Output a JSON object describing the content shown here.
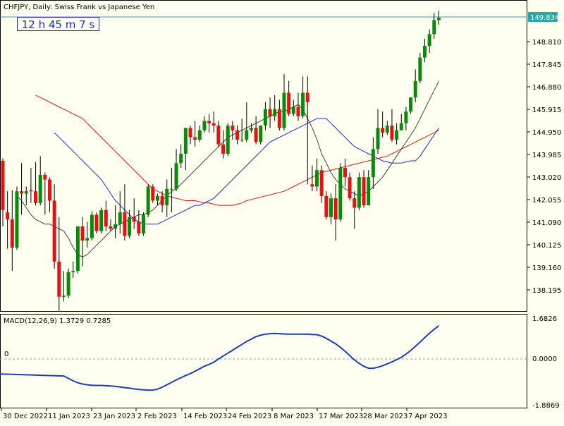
{
  "chart_title": "CHFJPY, Daily:  Swiss Frank vs Japanese Yen",
  "timer": "12 h 45 m 7 s",
  "current_price": "149.834",
  "price_axis_labels": [
    "148.810",
    "147.845",
    "146.880",
    "145.915",
    "144.950",
    "143.985",
    "143.020",
    "142.055",
    "141.090",
    "140.125",
    "139.160",
    "138.195"
  ],
  "macd_label": "MACD(12,26,9) 1.3729 0.7285",
  "macd_axis_labels": [
    "1.6826",
    "0.0000",
    "-1.8869"
  ],
  "macd_zero_label": "0",
  "date_labels": [
    "30 Dec 2022",
    "11 Jan 2023",
    "23 Jan 2023",
    "2 Feb 2023",
    "14 Feb 2023",
    "24 Feb 2023",
    "8 Mar 2023",
    "17 Mar 2023",
    "28 Mar 2023",
    "7 Apr 2023"
  ],
  "colors": {
    "background": "#fffff0",
    "bull": "#0a8a0a",
    "bear": "#e01414",
    "ma_fast": "#404040",
    "ma_mid": "#1e2bd2",
    "ma_slow": "#e01414",
    "macd": "#1e3cb4",
    "price_line": "#2aa7a7"
  },
  "chart_data": {
    "type": "candlestick",
    "symbol": "CHFJPY",
    "timeframe": "Daily",
    "ylim": [
      137.6,
      150.2
    ],
    "candles": [
      {
        "o": 143.7,
        "h": 143.8,
        "c": 141.6,
        "l": 140.9
      },
      {
        "o": 141.5,
        "h": 142.4,
        "c": 141.2,
        "l": 139.95
      },
      {
        "o": 141.2,
        "h": 142.45,
        "c": 140.0,
        "l": 139.0
      },
      {
        "o": 140.0,
        "h": 142.6,
        "c": 142.4,
        "l": 139.9
      },
      {
        "o": 142.4,
        "h": 143.6,
        "c": 142.3,
        "l": 141.4
      },
      {
        "o": 142.3,
        "h": 142.6,
        "c": 142.4,
        "l": 141.8
      },
      {
        "o": 142.45,
        "h": 143.4,
        "c": 142.4,
        "l": 141.9
      },
      {
        "o": 142.4,
        "h": 143.65,
        "c": 141.9,
        "l": 141.8
      },
      {
        "o": 141.9,
        "h": 143.9,
        "c": 143.1,
        "l": 141.8
      },
      {
        "o": 143.1,
        "h": 143.2,
        "c": 142.9,
        "l": 141.4
      },
      {
        "o": 142.9,
        "h": 143.0,
        "c": 142.0,
        "l": 141.5
      },
      {
        "o": 142.0,
        "h": 142.7,
        "c": 139.4,
        "l": 139.1
      },
      {
        "o": 139.4,
        "h": 141.3,
        "c": 137.9,
        "l": 137.3
      },
      {
        "o": 137.9,
        "h": 139.0,
        "c": 137.95,
        "l": 137.7
      },
      {
        "o": 137.95,
        "h": 139.1,
        "c": 138.95,
        "l": 137.85
      },
      {
        "o": 138.95,
        "h": 139.4,
        "c": 139.0,
        "l": 138.7
      },
      {
        "o": 139.0,
        "h": 140.8,
        "c": 140.9,
        "l": 138.9
      },
      {
        "o": 140.9,
        "h": 141.3,
        "c": 140.3,
        "l": 139.2
      },
      {
        "o": 140.3,
        "h": 141.1,
        "c": 140.4,
        "l": 140.0
      },
      {
        "o": 140.4,
        "h": 141.55,
        "c": 141.4,
        "l": 140.3
      },
      {
        "o": 141.4,
        "h": 141.5,
        "c": 140.7,
        "l": 140.6
      },
      {
        "o": 140.7,
        "h": 141.7,
        "c": 141.6,
        "l": 140.6
      },
      {
        "o": 141.6,
        "h": 142.0,
        "c": 140.9,
        "l": 140.7
      },
      {
        "o": 140.9,
        "h": 141.2,
        "c": 140.8,
        "l": 140.7
      },
      {
        "o": 140.8,
        "h": 141.8,
        "c": 141.0,
        "l": 140.4
      },
      {
        "o": 141.0,
        "h": 142.4,
        "c": 141.5,
        "l": 140.6
      },
      {
        "o": 141.5,
        "h": 142.7,
        "c": 140.5,
        "l": 140.3
      },
      {
        "o": 140.5,
        "h": 141.6,
        "c": 141.3,
        "l": 140.4
      },
      {
        "o": 141.3,
        "h": 142.1,
        "c": 141.1,
        "l": 140.8
      },
      {
        "o": 141.1,
        "h": 141.6,
        "c": 140.6,
        "l": 140.5
      },
      {
        "o": 140.6,
        "h": 141.5,
        "c": 141.4,
        "l": 140.5
      },
      {
        "o": 141.4,
        "h": 142.7,
        "c": 142.6,
        "l": 141.3
      },
      {
        "o": 142.6,
        "h": 142.7,
        "c": 142.0,
        "l": 141.9
      },
      {
        "o": 142.0,
        "h": 142.3,
        "c": 142.2,
        "l": 141.8
      },
      {
        "o": 142.2,
        "h": 142.4,
        "c": 141.8,
        "l": 141.5
      },
      {
        "o": 141.8,
        "h": 142.9,
        "c": 142.5,
        "l": 141.3
      },
      {
        "o": 142.5,
        "h": 143.4,
        "c": 142.5,
        "l": 141.5
      },
      {
        "o": 142.5,
        "h": 144.2,
        "c": 143.6,
        "l": 142.4
      },
      {
        "o": 143.6,
        "h": 144.4,
        "c": 144.0,
        "l": 143.4
      },
      {
        "o": 144.0,
        "h": 145.0,
        "c": 145.1,
        "l": 143.3
      },
      {
        "o": 145.1,
        "h": 145.2,
        "c": 144.7,
        "l": 144.4
      },
      {
        "o": 144.7,
        "h": 145.4,
        "c": 144.6,
        "l": 144.3
      },
      {
        "o": 144.6,
        "h": 145.2,
        "c": 145.0,
        "l": 144.5
      },
      {
        "o": 145.0,
        "h": 145.6,
        "c": 145.4,
        "l": 144.9
      },
      {
        "o": 145.4,
        "h": 145.7,
        "c": 145.3,
        "l": 144.9
      },
      {
        "o": 145.3,
        "h": 145.8,
        "c": 145.2,
        "l": 144.9
      },
      {
        "o": 145.2,
        "h": 145.4,
        "c": 144.4,
        "l": 144.3
      },
      {
        "o": 144.4,
        "h": 145.0,
        "c": 144.0,
        "l": 143.8
      },
      {
        "o": 144.0,
        "h": 145.3,
        "c": 145.2,
        "l": 143.9
      },
      {
        "o": 145.2,
        "h": 145.4,
        "c": 145.0,
        "l": 144.6
      },
      {
        "o": 145.0,
        "h": 145.2,
        "c": 144.6,
        "l": 144.4
      },
      {
        "o": 144.6,
        "h": 145.5,
        "c": 144.6,
        "l": 144.5
      },
      {
        "o": 144.6,
        "h": 146.2,
        "c": 145.0,
        "l": 144.5
      },
      {
        "o": 145.0,
        "h": 145.3,
        "c": 145.1,
        "l": 144.9
      },
      {
        "o": 145.1,
        "h": 145.6,
        "c": 144.5,
        "l": 144.4
      },
      {
        "o": 144.5,
        "h": 145.2,
        "c": 145.2,
        "l": 144.4
      },
      {
        "o": 145.2,
        "h": 146.2,
        "c": 145.9,
        "l": 145.0
      },
      {
        "o": 145.9,
        "h": 146.4,
        "c": 145.6,
        "l": 145.1
      },
      {
        "o": 145.6,
        "h": 146.5,
        "c": 145.9,
        "l": 145.4
      },
      {
        "o": 145.9,
        "h": 146.3,
        "c": 145.1,
        "l": 145.0
      },
      {
        "o": 145.1,
        "h": 147.4,
        "c": 146.6,
        "l": 145.0
      },
      {
        "o": 146.6,
        "h": 147.1,
        "c": 145.7,
        "l": 145.6
      },
      {
        "o": 145.7,
        "h": 146.3,
        "c": 146.0,
        "l": 145.6
      },
      {
        "o": 146.0,
        "h": 146.6,
        "c": 145.6,
        "l": 145.4
      },
      {
        "o": 145.6,
        "h": 147.3,
        "c": 146.6,
        "l": 145.5
      },
      {
        "o": 146.6,
        "h": 147.3,
        "c": 146.2,
        "l": 142.7
      },
      {
        "o": 142.7,
        "h": 143.5,
        "c": 142.6,
        "l": 142.4
      },
      {
        "o": 142.6,
        "h": 143.8,
        "c": 143.3,
        "l": 142.4
      },
      {
        "o": 143.3,
        "h": 143.5,
        "c": 142.2,
        "l": 141.9
      },
      {
        "o": 142.2,
        "h": 142.4,
        "c": 141.3,
        "l": 141.2
      },
      {
        "o": 141.3,
        "h": 142.3,
        "c": 142.1,
        "l": 141.0
      },
      {
        "o": 142.1,
        "h": 142.7,
        "c": 141.2,
        "l": 140.3
      },
      {
        "o": 141.2,
        "h": 143.6,
        "c": 143.4,
        "l": 141.1
      },
      {
        "o": 143.4,
        "h": 143.8,
        "c": 143.0,
        "l": 142.6
      },
      {
        "o": 143.0,
        "h": 143.2,
        "c": 142.1,
        "l": 142.0
      },
      {
        "o": 142.1,
        "h": 142.4,
        "c": 141.7,
        "l": 140.8
      },
      {
        "o": 141.7,
        "h": 143.2,
        "c": 143.0,
        "l": 141.6
      },
      {
        "o": 143.0,
        "h": 143.3,
        "c": 141.8,
        "l": 141.7
      },
      {
        "o": 141.8,
        "h": 143.3,
        "c": 143.0,
        "l": 141.8
      },
      {
        "o": 143.0,
        "h": 144.7,
        "c": 144.2,
        "l": 142.5
      },
      {
        "o": 144.2,
        "h": 145.9,
        "c": 145.1,
        "l": 144.0
      },
      {
        "o": 145.1,
        "h": 145.8,
        "c": 144.9,
        "l": 144.7
      },
      {
        "o": 144.9,
        "h": 145.4,
        "c": 145.2,
        "l": 144.8
      },
      {
        "o": 145.2,
        "h": 145.9,
        "c": 144.6,
        "l": 144.5
      },
      {
        "o": 144.6,
        "h": 145.3,
        "c": 145.0,
        "l": 144.4
      },
      {
        "o": 145.0,
        "h": 145.7,
        "c": 145.3,
        "l": 145.1
      },
      {
        "o": 145.3,
        "h": 146.0,
        "c": 145.8,
        "l": 145.0
      },
      {
        "o": 145.8,
        "h": 146.4,
        "c": 146.4,
        "l": 145.7
      },
      {
        "o": 146.4,
        "h": 147.6,
        "c": 147.1,
        "l": 146.2
      },
      {
        "o": 147.1,
        "h": 148.3,
        "c": 148.1,
        "l": 147.0
      },
      {
        "o": 148.1,
        "h": 148.9,
        "c": 148.6,
        "l": 147.9
      },
      {
        "o": 148.6,
        "h": 149.3,
        "c": 149.1,
        "l": 148.3
      },
      {
        "o": 149.1,
        "h": 150.0,
        "c": 149.7,
        "l": 148.9
      },
      {
        "o": 149.7,
        "h": 150.1,
        "c": 149.8,
        "l": 149.5
      }
    ],
    "ma_fast": [
      142.2,
      142.0,
      141.7,
      141.4,
      141.2,
      141.1,
      141.0,
      141.0,
      140.9,
      140.8,
      140.7,
      140.4,
      140.0,
      139.7,
      139.6,
      139.7,
      139.9,
      140.1,
      140.3,
      140.5,
      140.7,
      140.9,
      141.0,
      141.1,
      141.2,
      141.3,
      141.4,
      141.4,
      141.5,
      141.6,
      141.8,
      142.0,
      142.2,
      142.4,
      142.5,
      142.7,
      142.9,
      143.1,
      143.3,
      143.5,
      143.7,
      143.9,
      144.1,
      144.3,
      144.5,
      144.7,
      144.8,
      144.9,
      145.0,
      145.1,
      145.2,
      145.3,
      145.4,
      145.5,
      145.6,
      145.7,
      145.8,
      145.8,
      145.9,
      146.0,
      146.1,
      145.9,
      145.5,
      145.1,
      144.6,
      144.0,
      143.6,
      143.2,
      142.9,
      142.7,
      142.5,
      142.4,
      142.3,
      142.2,
      142.3,
      142.4,
      142.6,
      142.8,
      143.0,
      143.3,
      143.6,
      143.9,
      144.2,
      144.5,
      144.8,
      145.1,
      145.5,
      145.9,
      146.3,
      146.7,
      147.1
    ],
    "ma_mid": [
      144.9,
      144.7,
      144.5,
      144.3,
      144.1,
      143.9,
      143.7,
      143.5,
      143.3,
      143.1,
      142.9,
      142.6,
      142.3,
      142.0,
      141.8,
      141.6,
      141.4,
      141.2,
      141.1,
      141.0,
      141.0,
      141.0,
      141.0,
      141.1,
      141.2,
      141.3,
      141.4,
      141.5,
      141.6,
      141.7,
      141.8,
      141.8,
      141.9,
      142.0,
      142.1,
      142.3,
      142.5,
      142.7,
      142.9,
      143.1,
      143.3,
      143.5,
      143.7,
      143.9,
      144.1,
      144.3,
      144.5,
      144.6,
      144.7,
      144.8,
      144.9,
      145.0,
      145.1,
      145.2,
      145.3,
      145.4,
      145.5,
      145.5,
      145.5,
      145.3,
      145.1,
      144.9,
      144.7,
      144.5,
      144.3,
      144.2,
      144.1,
      144.0,
      143.9,
      143.8,
      143.7,
      143.65,
      143.6,
      143.6,
      143.6,
      143.65,
      143.7,
      143.7,
      143.9,
      144.2,
      144.5,
      144.8,
      145.1
    ],
    "ma_slow": [
      146.5,
      146.4,
      146.3,
      146.2,
      146.1,
      146.0,
      145.9,
      145.8,
      145.7,
      145.6,
      145.5,
      145.3,
      145.1,
      144.9,
      144.7,
      144.5,
      144.3,
      144.1,
      143.9,
      143.7,
      143.5,
      143.3,
      143.1,
      142.9,
      142.7,
      142.5,
      142.4,
      142.3,
      142.2,
      142.15,
      142.1,
      142.05,
      142.0,
      142.0,
      142.0,
      141.95,
      141.9,
      141.9,
      141.85,
      141.8,
      141.8,
      141.8,
      141.8,
      141.85,
      141.9,
      142.0,
      142.05,
      142.1,
      142.15,
      142.2,
      142.25,
      142.3,
      142.35,
      142.4,
      142.5,
      142.6,
      142.7,
      142.8,
      142.9,
      143.0,
      143.1,
      143.2,
      143.25,
      143.3,
      143.35,
      143.4,
      143.45,
      143.5,
      143.55,
      143.6,
      143.65,
      143.7,
      143.75,
      143.8,
      143.85,
      143.9,
      144.0,
      144.1,
      144.2,
      144.3,
      144.4,
      144.5,
      144.6,
      144.7,
      144.8,
      144.9,
      145.0
    ],
    "macd": {
      "ylim": [
        -1.8869,
        1.6826
      ],
      "values": [
        -0.7,
        -0.8,
        -0.9,
        -0.98,
        -1.03,
        -1.06,
        -1.08,
        -1.09,
        -1.09,
        -1.1,
        -1.11,
        -1.13,
        -1.15,
        -1.18,
        -1.2,
        -1.23,
        -1.25,
        -1.27,
        -1.28,
        -1.28,
        -1.24,
        -1.16,
        -1.06,
        -0.96,
        -0.86,
        -0.77,
        -0.68,
        -0.6,
        -0.5,
        -0.4,
        -0.3,
        -0.22,
        -0.13,
        0.0,
        0.12,
        0.24,
        0.36,
        0.48,
        0.6,
        0.72,
        0.82,
        0.92,
        0.98,
        1.02,
        1.04,
        1.05,
        1.04,
        1.03,
        1.02,
        1.02,
        1.02,
        1.02,
        1.02,
        1.01,
        1.0,
        0.94,
        0.85,
        0.74,
        0.62,
        0.48,
        0.32,
        0.14,
        -0.04,
        -0.18,
        -0.3,
        -0.38,
        -0.38,
        -0.34,
        -0.28,
        -0.2,
        -0.12,
        -0.03,
        0.07,
        0.2,
        0.35,
        0.52,
        0.7,
        0.88,
        1.06,
        1.22,
        1.37
      ]
    }
  }
}
